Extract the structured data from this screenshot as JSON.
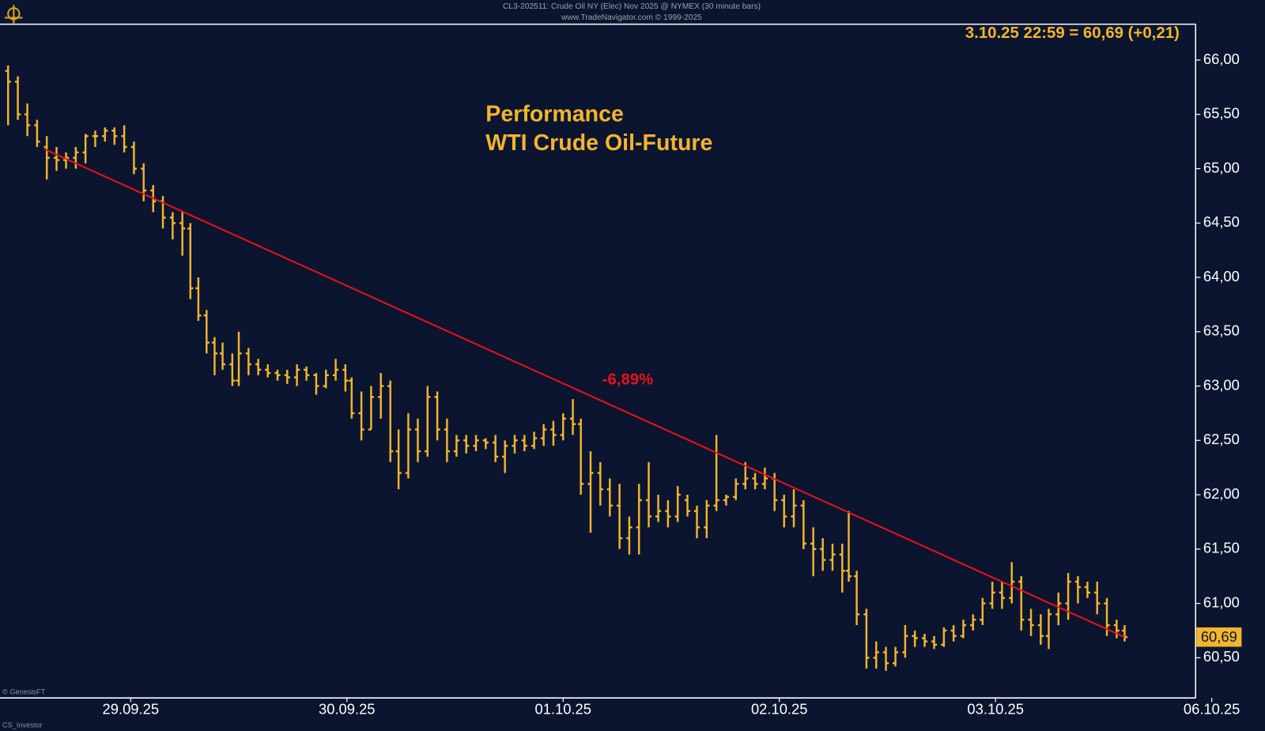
{
  "chart_data": {
    "type": "ohlc",
    "source_lines": [
      "CL3-202511: Crude Oil NY (Elec) Nov 2025 @ NYMEX (30 minute bars)",
      "www.TradeNavigator.com © 1999-2025"
    ],
    "title": "Performance",
    "subtitle": "WTI Crude Oil-Future",
    "status": "3.10.25 22:59 = 60,69 (+0,21)",
    "credits": [
      "© GenesisFT",
      "CS_Investor"
    ],
    "color": "#f2b52d",
    "x": [
      -0.567,
      -0.522,
      -0.478,
      -0.433,
      -0.388,
      -0.343,
      -0.299,
      -0.254,
      -0.209,
      -0.164,
      -0.119,
      -0.075,
      -0.03,
      0.015,
      0.06,
      0.104,
      0.149,
      0.194,
      0.239,
      0.276,
      0.313,
      0.351,
      0.388,
      0.425,
      0.47,
      0.5,
      0.545,
      0.59,
      0.634,
      0.679,
      0.724,
      0.769,
      0.813,
      0.858,
      0.903,
      0.948,
      0.993,
      1.022,
      1.067,
      1.112,
      1.157,
      1.201,
      1.239,
      1.284,
      1.328,
      1.373,
      1.418,
      1.463,
      1.507,
      1.552,
      1.597,
      1.642,
      1.687,
      1.731,
      1.776,
      1.821,
      1.866,
      1.91,
      1.955,
      2.0,
      2.045,
      2.082,
      2.127,
      2.172,
      2.216,
      2.261,
      2.306,
      2.351,
      2.396,
      2.44,
      2.485,
      2.53,
      2.575,
      2.619,
      2.664,
      2.709,
      2.754,
      2.799,
      2.843,
      2.888,
      2.933,
      2.978,
      3.022,
      3.067,
      3.112,
      3.157,
      3.201,
      3.246,
      3.291,
      3.321,
      3.358,
      3.403,
      3.448,
      3.493,
      3.537,
      3.582,
      3.627,
      3.672,
      3.716,
      3.761,
      3.806,
      3.851,
      3.896,
      3.94,
      3.985,
      4.03,
      4.075,
      4.119,
      4.164,
      4.209,
      4.246,
      4.291,
      4.336,
      4.381,
      4.425,
      4.47,
      4.515,
      4.56,
      4.597
    ],
    "open": [
      65.9,
      65.8,
      65.5,
      65.4,
      65.2,
      65.1,
      65.08,
      65.1,
      65.15,
      65.3,
      65.3,
      65.35,
      65.3,
      65.2,
      65.0,
      64.8,
      64.7,
      64.55,
      64.5,
      64.45,
      63.9,
      63.65,
      63.4,
      63.3,
      63.2,
      63.05,
      63.3,
      63.2,
      63.15,
      63.12,
      63.1,
      63.08,
      63.15,
      63.1,
      63.0,
      63.1,
      63.15,
      63.05,
      62.75,
      62.6,
      62.9,
      63.0,
      62.4,
      62.2,
      62.6,
      62.4,
      62.9,
      62.6,
      62.4,
      62.5,
      62.45,
      62.5,
      62.48,
      62.35,
      62.45,
      62.5,
      62.45,
      62.52,
      62.6,
      62.55,
      62.7,
      62.65,
      62.1,
      62.2,
      62.05,
      61.9,
      61.6,
      61.7,
      61.95,
      61.8,
      61.85,
      61.8,
      61.95,
      61.85,
      61.7,
      61.9,
      61.95,
      61.98,
      62.1,
      62.15,
      62.1,
      62.15,
      61.95,
      61.8,
      61.9,
      61.55,
      61.5,
      61.4,
      61.45,
      61.3,
      61.25,
      60.9,
      60.5,
      60.55,
      60.45,
      60.55,
      60.7,
      60.68,
      60.65,
      60.62,
      60.75,
      60.7,
      60.8,
      60.85,
      61.0,
      61.1,
      61.05,
      61.2,
      60.85,
      60.8,
      60.7,
      60.9,
      61.0,
      61.2,
      61.15,
      61.1,
      61.0,
      60.8,
      60.75
    ],
    "high": [
      65.95,
      65.85,
      65.6,
      65.45,
      65.3,
      65.2,
      65.15,
      65.2,
      65.32,
      65.35,
      65.38,
      65.38,
      65.4,
      65.25,
      65.05,
      64.85,
      64.75,
      64.6,
      64.6,
      64.5,
      64.0,
      63.7,
      63.45,
      63.4,
      63.3,
      63.5,
      63.35,
      63.25,
      63.2,
      63.15,
      63.15,
      63.2,
      63.18,
      63.12,
      63.15,
      63.25,
      63.2,
      63.08,
      62.95,
      63.0,
      63.12,
      63.05,
      62.6,
      62.75,
      62.7,
      63.0,
      62.95,
      62.7,
      62.55,
      62.55,
      62.55,
      62.52,
      62.55,
      62.5,
      62.55,
      62.55,
      62.58,
      62.65,
      62.68,
      62.75,
      62.88,
      62.7,
      62.4,
      62.3,
      62.15,
      62.1,
      61.8,
      62.1,
      62.3,
      62.0,
      61.95,
      62.08,
      62.0,
      61.9,
      61.95,
      62.55,
      62.0,
      62.15,
      62.3,
      62.2,
      62.25,
      62.2,
      62.0,
      62.05,
      61.95,
      61.7,
      61.6,
      61.55,
      61.55,
      61.85,
      61.3,
      60.95,
      60.65,
      60.6,
      60.6,
      60.8,
      60.75,
      60.72,
      60.7,
      60.78,
      60.8,
      60.85,
      60.9,
      61.05,
      61.2,
      61.2,
      61.38,
      61.25,
      60.95,
      60.9,
      60.95,
      61.1,
      61.28,
      61.25,
      61.2,
      61.2,
      61.05,
      60.85,
      60.8
    ],
    "low": [
      65.4,
      65.45,
      65.3,
      65.2,
      64.9,
      64.98,
      65.0,
      65.0,
      65.05,
      65.2,
      65.25,
      65.22,
      65.15,
      64.95,
      64.7,
      64.6,
      64.45,
      64.35,
      64.2,
      63.8,
      63.6,
      63.3,
      63.1,
      63.15,
      63.0,
      63.0,
      63.1,
      63.1,
      63.08,
      63.05,
      63.02,
      63.0,
      63.05,
      62.92,
      62.98,
      63.05,
      62.95,
      62.7,
      62.5,
      62.6,
      62.7,
      62.3,
      62.05,
      62.15,
      62.3,
      62.35,
      62.5,
      62.3,
      62.35,
      62.38,
      62.4,
      62.42,
      62.3,
      62.2,
      62.38,
      62.4,
      62.42,
      62.45,
      62.45,
      62.5,
      62.55,
      62.0,
      61.65,
      61.9,
      61.8,
      61.5,
      61.45,
      61.45,
      61.7,
      61.75,
      61.7,
      61.75,
      61.8,
      61.6,
      61.6,
      61.85,
      61.9,
      61.95,
      62.05,
      62.05,
      62.05,
      61.85,
      61.7,
      61.7,
      61.5,
      61.25,
      61.3,
      61.3,
      61.1,
      61.2,
      60.8,
      60.4,
      60.4,
      60.38,
      60.42,
      60.5,
      60.6,
      60.6,
      60.58,
      60.6,
      60.65,
      60.68,
      60.75,
      60.8,
      60.95,
      60.95,
      61.0,
      60.75,
      60.7,
      60.62,
      60.58,
      60.8,
      60.85,
      61.0,
      61.05,
      60.9,
      60.7,
      60.68,
      60.65
    ],
    "close": [
      65.8,
      65.5,
      65.4,
      65.25,
      65.1,
      65.08,
      65.1,
      65.15,
      65.3,
      65.3,
      65.35,
      65.3,
      65.2,
      65.0,
      64.8,
      64.7,
      64.55,
      64.5,
      64.45,
      63.9,
      63.65,
      63.4,
      63.3,
      63.2,
      63.05,
      63.3,
      63.2,
      63.15,
      63.12,
      63.1,
      63.08,
      63.15,
      63.1,
      63.0,
      63.1,
      63.15,
      63.05,
      62.75,
      62.6,
      62.9,
      63.0,
      62.4,
      62.2,
      62.6,
      62.4,
      62.9,
      62.6,
      62.4,
      62.5,
      62.45,
      62.5,
      62.48,
      62.35,
      62.45,
      62.5,
      62.45,
      62.52,
      62.6,
      62.55,
      62.7,
      62.65,
      62.1,
      62.2,
      62.05,
      61.9,
      61.6,
      61.7,
      61.95,
      61.8,
      61.85,
      61.8,
      62.0,
      61.85,
      61.7,
      61.9,
      61.95,
      61.98,
      62.1,
      62.15,
      62.1,
      62.15,
      61.95,
      61.8,
      61.9,
      61.55,
      61.5,
      61.4,
      61.45,
      61.3,
      61.25,
      60.9,
      60.5,
      60.55,
      60.45,
      60.55,
      60.7,
      60.68,
      60.65,
      60.62,
      60.75,
      60.7,
      60.8,
      60.85,
      61.0,
      61.1,
      61.05,
      61.2,
      60.85,
      60.8,
      60.7,
      60.9,
      61.0,
      61.2,
      61.15,
      61.1,
      61.0,
      60.8,
      60.75,
      60.69
    ],
    "trendline": {
      "x": [
        -0.399,
        4.597
      ],
      "y": [
        65.18,
        60.69
      ],
      "color": "#e8101a",
      "label": "-6,89%"
    },
    "last_price": {
      "value": 60.69,
      "label": "60,69"
    },
    "xlim": [
      -0.6,
      5
    ],
    "xticks": [
      {
        "value": 0,
        "label": "29.09.25"
      },
      {
        "value": 1,
        "label": "30.09.25"
      },
      {
        "value": 2,
        "label": "01.10.25"
      },
      {
        "value": 3,
        "label": "02.10.25"
      },
      {
        "value": 4,
        "label": "03.10.25"
      },
      {
        "value": 5,
        "label": "06.10.25"
      }
    ],
    "ylim": [
      60.13,
      66.33
    ],
    "yticks": [
      {
        "value": 60.5,
        "label": "60,50"
      },
      {
        "value": 61,
        "label": "61,00"
      },
      {
        "value": 61.5,
        "label": "61,50"
      },
      {
        "value": 62,
        "label": "62,00"
      },
      {
        "value": 62.5,
        "label": "62,50"
      },
      {
        "value": 63,
        "label": "63,00"
      },
      {
        "value": 63.5,
        "label": "63,50"
      },
      {
        "value": 64,
        "label": "64,00"
      },
      {
        "value": 64.5,
        "label": "64,50"
      },
      {
        "value": 65,
        "label": "65,00"
      },
      {
        "value": 65.5,
        "label": "65,50"
      },
      {
        "value": 66,
        "label": "66,00"
      }
    ],
    "grid": false
  }
}
